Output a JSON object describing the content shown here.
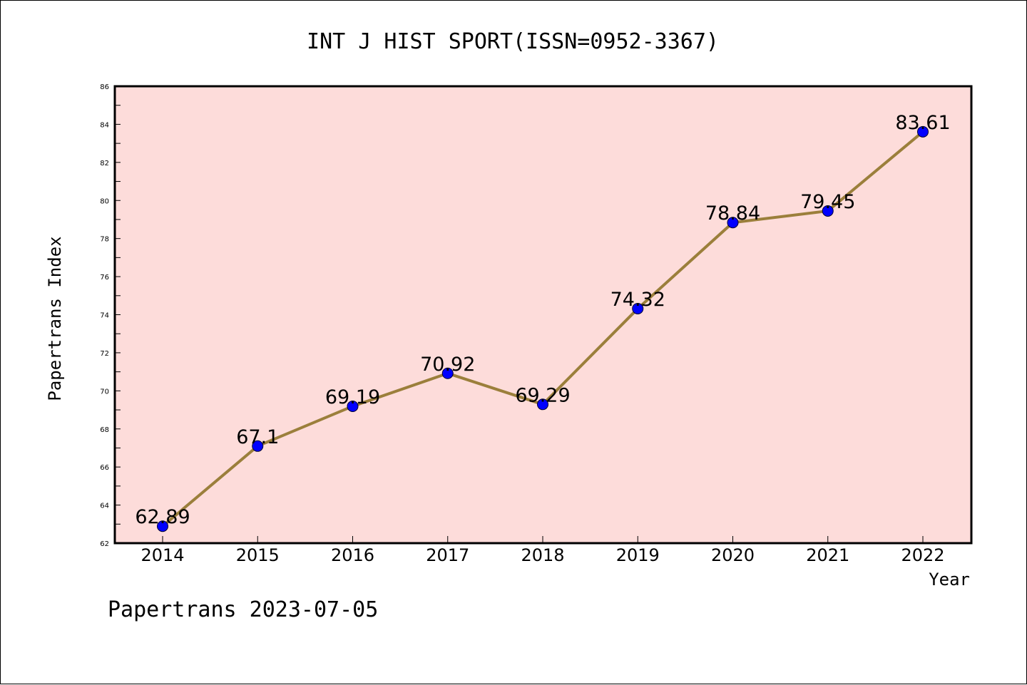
{
  "chart_data": {
    "type": "line",
    "title": "INT J HIST SPORT(ISSN=0952-3367)",
    "xlabel": "Year",
    "ylabel": "Papertrans Index",
    "categories": [
      "2014",
      "2015",
      "2016",
      "2017",
      "2018",
      "2019",
      "2020",
      "2021",
      "2022"
    ],
    "series": [
      {
        "values": [
          62.89,
          67.1,
          69.19,
          70.92,
          69.29,
          74.32,
          78.84,
          79.45,
          83.61
        ],
        "labels": [
          "62.89",
          "67.1",
          "69.19",
          "70.92",
          "69.29",
          "74.32",
          "78.84",
          "79.45",
          "83.61"
        ]
      }
    ],
    "ylim": [
      62,
      86
    ],
    "yticks": [
      62,
      64,
      66,
      68,
      70,
      72,
      74,
      76,
      78,
      80,
      82,
      84,
      86
    ],
    "grid": false,
    "colors": {
      "plot_background": "#fddcda",
      "line": "#9b7f3b",
      "marker": "#0000ff"
    }
  },
  "footer": "Papertrans 2023-07-05"
}
